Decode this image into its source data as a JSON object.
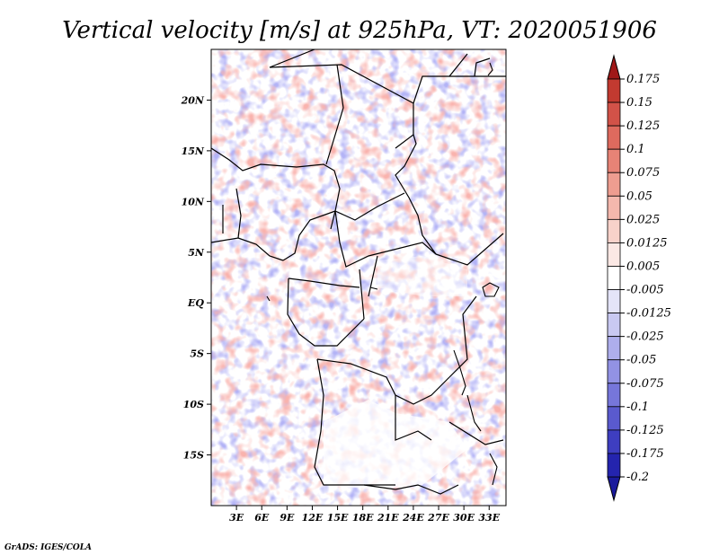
{
  "title": "Vertical velocity [m/s] at 925hPa, VT: 2020051906",
  "credit": "GrADS: IGES/COLA",
  "map": {
    "lon_range": [
      0,
      35
    ],
    "lat_range": [
      -20,
      25
    ],
    "lat_ticks": [
      {
        "value": 20,
        "label": "20N"
      },
      {
        "value": 15,
        "label": "15N"
      },
      {
        "value": 10,
        "label": "10N"
      },
      {
        "value": 5,
        "label": "5N"
      },
      {
        "value": 0,
        "label": "EQ"
      },
      {
        "value": -5,
        "label": "5S"
      },
      {
        "value": -10,
        "label": "10S"
      },
      {
        "value": -15,
        "label": "15S"
      }
    ],
    "lon_ticks": [
      {
        "value": 3,
        "label": "3E"
      },
      {
        "value": 6,
        "label": "6E"
      },
      {
        "value": 9,
        "label": "9E"
      },
      {
        "value": 12,
        "label": "12E"
      },
      {
        "value": 15,
        "label": "15E"
      },
      {
        "value": 18,
        "label": "18E"
      },
      {
        "value": 21,
        "label": "21E"
      },
      {
        "value": 24,
        "label": "24E"
      },
      {
        "value": 27,
        "label": "27E"
      },
      {
        "value": 30,
        "label": "30E"
      },
      {
        "value": 33,
        "label": "33E"
      }
    ]
  },
  "colorbar": {
    "levels": [
      {
        "label": "0.175",
        "color": "#b0201e"
      },
      {
        "label": "0.15",
        "color": "#c23a30"
      },
      {
        "label": "0.125",
        "color": "#d25248"
      },
      {
        "label": "0.1",
        "color": "#de6a5e"
      },
      {
        "label": "0.075",
        "color": "#e78376"
      },
      {
        "label": "0.05",
        "color": "#ee9d90"
      },
      {
        "label": "0.025",
        "color": "#f4b8ad"
      },
      {
        "label": "0.0125",
        "color": "#f8d2ca"
      },
      {
        "label": "0.005",
        "color": "#fbe8e4"
      },
      {
        "label": "-0.005",
        "color": "#ffffff"
      },
      {
        "label": "-0.0125",
        "color": "#e4e4f8"
      },
      {
        "label": "-0.025",
        "color": "#c9c9f2"
      },
      {
        "label": "-0.05",
        "color": "#aeaeec"
      },
      {
        "label": "-0.075",
        "color": "#9292e4"
      },
      {
        "label": "-0.1",
        "color": "#7676da"
      },
      {
        "label": "-0.125",
        "color": "#5a5ace"
      },
      {
        "label": "-0.175",
        "color": "#3e3ec0"
      },
      {
        "label": "-0.2",
        "color": "#2424ae"
      }
    ],
    "extend_low_color": "#1a1a9c",
    "extend_high_color": "#a01818"
  }
}
